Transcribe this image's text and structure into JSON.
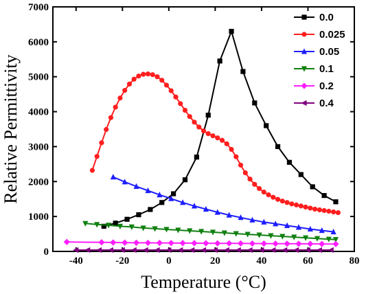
{
  "chart_data": {
    "type": "line",
    "title": "",
    "xlabel": "Temperature (°C)",
    "ylabel": "Relative Permittivity",
    "xlim": [
      -50,
      80
    ],
    "ylim": [
      0,
      7000
    ],
    "x_ticks": [
      "-40",
      "-20",
      "0",
      "20",
      "40",
      "60",
      "80"
    ],
    "y_ticks": [
      "0",
      "1000",
      "2000",
      "3000",
      "4000",
      "5000",
      "6000",
      "7000"
    ],
    "legend_position": "top-right",
    "grid": false,
    "series": [
      {
        "name": "0.0",
        "color": "#000000",
        "marker": "square",
        "x": [
          -28,
          -23,
          -18,
          -13,
          -8,
          -3,
          2,
          7,
          12,
          17,
          22,
          27,
          32,
          37,
          42,
          47,
          52,
          57,
          62,
          67,
          72
        ],
        "y": [
          720,
          810,
          920,
          1050,
          1200,
          1400,
          1650,
          2050,
          2700,
          3900,
          5450,
          6300,
          5150,
          4250,
          3600,
          3000,
          2550,
          2200,
          1850,
          1600,
          1420
        ]
      },
      {
        "name": "0.025",
        "color": "#ff1e1e",
        "marker": "circle",
        "x": [
          -33,
          -31,
          -29,
          -27,
          -25,
          -23,
          -21,
          -19,
          -17,
          -15,
          -13,
          -11,
          -9,
          -7,
          -5,
          -3,
          -1,
          1,
          3,
          5,
          7,
          9,
          11,
          13,
          15,
          17,
          19,
          21,
          23,
          25,
          27,
          29,
          31,
          33,
          35,
          37,
          39,
          41,
          43,
          45,
          47,
          49,
          51,
          53,
          55,
          57,
          59,
          61,
          63,
          65,
          67,
          69,
          71,
          73
        ],
        "y": [
          2320,
          2720,
          3110,
          3490,
          3830,
          4130,
          4390,
          4610,
          4790,
          4930,
          5020,
          5070,
          5080,
          5060,
          5000,
          4900,
          4760,
          4600,
          4420,
          4230,
          4040,
          3860,
          3700,
          3560,
          3450,
          3370,
          3310,
          3250,
          3180,
          3080,
          2920,
          2710,
          2470,
          2250,
          2070,
          1920,
          1800,
          1700,
          1620,
          1550,
          1490,
          1440,
          1400,
          1360,
          1330,
          1300,
          1270,
          1240,
          1210,
          1190,
          1170,
          1150,
          1130,
          1110
        ]
      },
      {
        "name": "0.05",
        "color": "#1e1eff",
        "marker": "triangle-up",
        "x": [
          -24,
          -19,
          -14,
          -9,
          -4,
          1,
          6,
          11,
          16,
          21,
          26,
          31,
          36,
          41,
          46,
          51,
          56,
          61,
          66,
          71
        ],
        "y": [
          2130,
          1990,
          1860,
          1740,
          1620,
          1510,
          1400,
          1300,
          1210,
          1120,
          1040,
          970,
          900,
          840,
          790,
          740,
          690,
          640,
          600,
          560
        ]
      },
      {
        "name": "0.1",
        "color": "#108010",
        "marker": "triangle-down",
        "x": [
          -36,
          -31,
          -26,
          -21,
          -16,
          -11,
          -6,
          -1,
          4,
          9,
          14,
          19,
          24,
          29,
          34,
          39,
          44,
          49,
          54,
          59,
          64,
          69,
          72
        ],
        "y": [
          800,
          770,
          750,
          720,
          700,
          670,
          650,
          630,
          610,
          590,
          570,
          550,
          530,
          510,
          490,
          470,
          450,
          430,
          410,
          390,
          370,
          350,
          340
        ]
      },
      {
        "name": "0.2",
        "color": "#ff1eff",
        "marker": "diamond",
        "x": [
          -44,
          -29,
          -24,
          -19,
          -14,
          -9,
          -4,
          1,
          6,
          11,
          16,
          21,
          26,
          31,
          36,
          41,
          46,
          51,
          56,
          61,
          66,
          72
        ],
        "y": [
          270,
          260,
          255,
          250,
          248,
          245,
          243,
          240,
          238,
          236,
          234,
          232,
          230,
          228,
          226,
          224,
          222,
          220,
          218,
          216,
          214,
          212
        ]
      },
      {
        "name": "0.4",
        "color": "#800080",
        "marker": "triangle-left",
        "x": [
          -40,
          -35,
          -30,
          -25,
          -20,
          -15,
          -10,
          -5,
          0,
          5,
          10,
          15,
          20,
          25,
          30,
          35,
          40,
          45,
          50,
          55,
          60,
          65,
          70
        ],
        "y": [
          40,
          40,
          40,
          40,
          40,
          40,
          40,
          40,
          40,
          40,
          40,
          40,
          40,
          40,
          40,
          40,
          40,
          40,
          40,
          40,
          40,
          40,
          40
        ]
      }
    ]
  }
}
